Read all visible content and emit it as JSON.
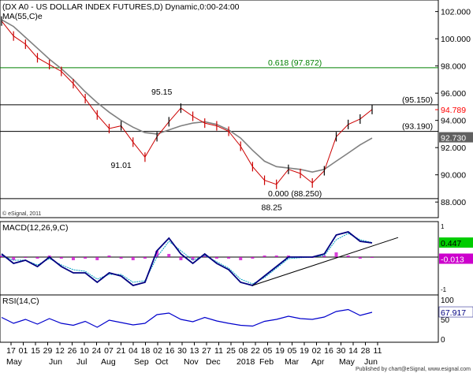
{
  "chart_data": [
    {
      "type": "line",
      "panel": "price",
      "title": "(DX A0 - US DOLLAR INDEX FUTURES,D) Dynamic,0:00-24:00",
      "subtitle": "MA(55,C)e",
      "copyright": "© eSignal, 2011",
      "y_ticks": [
        "102.000",
        "100.000",
        "98.000",
        "96.000",
        "94.000",
        "92.000",
        "90.000",
        "88.000"
      ],
      "ylim": [
        87.2,
        102.5
      ],
      "horizontal_levels": [
        {
          "label": "(95.150)",
          "value": 95.15,
          "color": "#000000"
        },
        {
          "label": "(93.190)",
          "value": 93.19,
          "color": "#000000"
        },
        {
          "label": "0.618 (97.872)",
          "value": 97.872,
          "color": "#008000"
        },
        {
          "label": "0.000 (88.250)",
          "value": 88.25,
          "color": "#000000"
        }
      ],
      "annotations": [
        {
          "label": "95.15",
          "x": 67,
          "value": 95.9
        },
        {
          "label": "91.01",
          "x": 50,
          "value": 90.5
        },
        {
          "label": "88.25",
          "x": 113,
          "value": 87.4
        }
      ],
      "last_price": {
        "label": "94.789",
        "value": 94.789,
        "color": "#ff0000"
      },
      "ma_last": {
        "label": "92.730",
        "value": 92.73
      },
      "x": [
        0,
        5,
        10,
        15,
        20,
        25,
        30,
        35,
        40,
        45,
        50,
        55,
        60,
        65,
        70,
        75,
        80,
        85,
        90,
        95,
        100,
        105,
        110,
        115,
        120,
        125,
        130,
        135,
        140,
        145,
        150,
        155
      ],
      "series": [
        {
          "role": "price",
          "color": "#cc0000",
          "values": [
            101.3,
            100.2,
            99.6,
            98.6,
            98.1,
            97.6,
            96.7,
            95.6,
            94.4,
            93.4,
            93.6,
            92.4,
            91.3,
            92.8,
            93.9,
            94.9,
            94.3,
            93.8,
            93.6,
            93.2,
            92.1,
            90.6,
            89.6,
            89.3,
            90.4,
            90.1,
            89.4,
            90.3,
            92.8,
            93.7,
            94.1,
            94.8
          ]
        },
        {
          "role": "ma",
          "color": "#808080",
          "values": [
            101.4,
            100.9,
            100.1,
            99.3,
            98.5,
            97.8,
            97.0,
            96.1,
            95.3,
            94.6,
            94.0,
            93.5,
            93.1,
            93.0,
            93.3,
            93.6,
            93.8,
            93.9,
            93.7,
            93.3,
            92.7,
            91.8,
            91.0,
            90.6,
            90.5,
            90.4,
            90.2,
            90.4,
            91.0,
            91.6,
            92.2,
            92.7
          ]
        }
      ]
    },
    {
      "type": "line",
      "panel": "macd",
      "title": "MACD(12,26,9,C)",
      "ylim": [
        -1.1,
        0.95
      ],
      "y_ticks": [
        "1",
        "-1"
      ],
      "macd_last": {
        "label": "0.447",
        "value": 0.447
      },
      "hist_last": {
        "label": "-0.013",
        "value": -0.013
      },
      "x": [
        0,
        5,
        10,
        15,
        20,
        25,
        30,
        35,
        40,
        45,
        50,
        55,
        60,
        65,
        70,
        75,
        80,
        85,
        90,
        95,
        100,
        105,
        110,
        115,
        120,
        125,
        130,
        135,
        140,
        145,
        150,
        155
      ],
      "series": [
        {
          "role": "macd",
          "color": "#000080",
          "values": [
            0.1,
            -0.2,
            -0.1,
            -0.3,
            0.0,
            -0.3,
            -0.5,
            -0.5,
            -0.8,
            -0.5,
            -0.6,
            -0.9,
            -0.8,
            0.2,
            0.6,
            0.1,
            -0.2,
            0.1,
            -0.2,
            -0.4,
            -0.8,
            -0.9,
            -0.6,
            -0.3,
            0.0,
            0.0,
            0.0,
            0.1,
            0.7,
            0.8,
            0.5,
            0.45
          ]
        },
        {
          "role": "signal",
          "color": "#00a0c0",
          "values": [
            0.05,
            -0.1,
            -0.1,
            -0.25,
            -0.05,
            -0.25,
            -0.4,
            -0.45,
            -0.7,
            -0.55,
            -0.55,
            -0.8,
            -0.75,
            0.0,
            0.5,
            0.2,
            -0.1,
            0.05,
            -0.15,
            -0.35,
            -0.7,
            -0.85,
            -0.65,
            -0.35,
            -0.05,
            -0.02,
            0.0,
            0.05,
            0.55,
            0.75,
            0.55,
            0.46
          ]
        },
        {
          "role": "histogram",
          "color": "#cc00cc",
          "values": [
            0.05,
            -0.1,
            0.0,
            -0.05,
            0.05,
            -0.05,
            -0.1,
            -0.05,
            -0.1,
            0.05,
            -0.05,
            -0.1,
            -0.05,
            0.2,
            0.1,
            -0.1,
            -0.1,
            0.05,
            -0.05,
            -0.05,
            -0.1,
            -0.05,
            0.05,
            0.05,
            0.05,
            0.02,
            0.0,
            0.05,
            0.15,
            0.05,
            -0.05,
            -0.013
          ]
        }
      ]
    },
    {
      "type": "line",
      "panel": "rsi",
      "title": "RSI(14,C)",
      "ylim": [
        0,
        100
      ],
      "y_ticks": [
        "100",
        "50",
        "0"
      ],
      "rsi_last": {
        "label": "67.917",
        "value": 67.917
      },
      "x": [
        0,
        5,
        10,
        15,
        20,
        25,
        30,
        35,
        40,
        45,
        50,
        55,
        60,
        65,
        70,
        75,
        80,
        85,
        90,
        95,
        100,
        105,
        110,
        115,
        120,
        125,
        130,
        135,
        140,
        145,
        150,
        155
      ],
      "series": [
        {
          "role": "rsi",
          "color": "#0000cc",
          "values": [
            55,
            40,
            50,
            38,
            52,
            40,
            35,
            45,
            30,
            48,
            42,
            36,
            40,
            62,
            66,
            50,
            44,
            55,
            46,
            40,
            35,
            33,
            45,
            50,
            58,
            52,
            50,
            56,
            70,
            75,
            60,
            68
          ]
        }
      ]
    },
    {
      "type": "axis",
      "panel": "time-axis",
      "day_labels": [
        "17",
        "01",
        "15",
        "29",
        "12",
        "26",
        "10",
        "24",
        "07",
        "21",
        "04",
        "18",
        "02",
        "16",
        "30",
        "13",
        "27",
        "11",
        "25",
        "08",
        "22",
        "05",
        "19",
        "05",
        "19",
        "02",
        "16",
        "30",
        "14",
        "28",
        "11"
      ],
      "month_labels": [
        "May",
        "Jun",
        "Jul",
        "Aug",
        "Sep",
        "Oct",
        "Nov",
        "Dec",
        "2018",
        "Feb",
        "Mar",
        "Apr",
        "May",
        "Jun"
      ],
      "footer": "Published by chart@eSignal, www.esignal.com"
    }
  ]
}
